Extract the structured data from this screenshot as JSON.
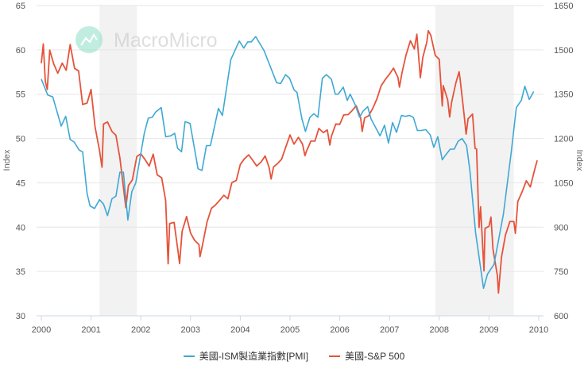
{
  "watermark": {
    "text": "MacroMicro"
  },
  "chart_data": {
    "type": "line",
    "xlabel": "",
    "x_ticks": [
      "2000",
      "2001",
      "2002",
      "2003",
      "2004",
      "2005",
      "2006",
      "2007",
      "2008",
      "2009",
      "2010"
    ],
    "xlim": [
      2000,
      2010
    ],
    "y_left": {
      "label": "Index",
      "lim": [
        30,
        65
      ],
      "ticks": [
        "30",
        "35",
        "40",
        "45",
        "50",
        "55",
        "60",
        "65"
      ]
    },
    "y_right": {
      "label": "Index",
      "lim": [
        600,
        1650
      ],
      "ticks": [
        "600",
        "750",
        "900",
        "1050",
        "1200",
        "1350",
        "1500",
        "1650"
      ]
    },
    "grid": true,
    "legend_position": "bottom",
    "shaded_periods": [
      [
        2001.17,
        2001.92
      ],
      [
        2007.92,
        2009.5
      ]
    ],
    "series": [
      {
        "name": "美國-ISM製造業指數[PMI]",
        "axis": "left",
        "color": "#3ea8d4",
        "points": [
          [
            2000.0,
            56.7
          ],
          [
            2000.13,
            54.9
          ],
          [
            2000.23,
            54.7
          ],
          [
            2000.4,
            51.4
          ],
          [
            2000.49,
            52.5
          ],
          [
            2000.58,
            49.9
          ],
          [
            2000.66,
            49.6
          ],
          [
            2000.76,
            48.7
          ],
          [
            2000.83,
            48.5
          ],
          [
            2000.92,
            43.8
          ],
          [
            2000.98,
            42.4
          ],
          [
            2001.07,
            42.1
          ],
          [
            2001.17,
            43.1
          ],
          [
            2001.25,
            42.6
          ],
          [
            2001.33,
            41.3
          ],
          [
            2001.42,
            43.2
          ],
          [
            2001.5,
            43.5
          ],
          [
            2001.58,
            46.2
          ],
          [
            2001.65,
            46.2
          ],
          [
            2001.74,
            40.8
          ],
          [
            2001.82,
            44.0
          ],
          [
            2001.9,
            45.0
          ],
          [
            2002.07,
            50.6
          ],
          [
            2002.15,
            52.3
          ],
          [
            2002.23,
            52.4
          ],
          [
            2002.3,
            53.0
          ],
          [
            2002.41,
            53.5
          ],
          [
            2002.5,
            50.2
          ],
          [
            2002.6,
            50.3
          ],
          [
            2002.68,
            50.6
          ],
          [
            2002.74,
            48.9
          ],
          [
            2002.82,
            48.5
          ],
          [
            2002.89,
            51.9
          ],
          [
            2002.99,
            51.7
          ],
          [
            2003.15,
            46.6
          ],
          [
            2003.23,
            46.4
          ],
          [
            2003.32,
            49.2
          ],
          [
            2003.4,
            49.2
          ],
          [
            2003.56,
            53.4
          ],
          [
            2003.64,
            52.6
          ],
          [
            2003.81,
            58.9
          ],
          [
            2003.98,
            61.0
          ],
          [
            2004.07,
            60.2
          ],
          [
            2004.15,
            60.9
          ],
          [
            2004.22,
            60.9
          ],
          [
            2004.31,
            61.5
          ],
          [
            2004.48,
            59.9
          ],
          [
            2004.73,
            56.3
          ],
          [
            2004.81,
            56.2
          ],
          [
            2004.91,
            57.2
          ],
          [
            2004.99,
            56.8
          ],
          [
            2005.08,
            55.5
          ],
          [
            2005.14,
            55.2
          ],
          [
            2005.24,
            52.2
          ],
          [
            2005.31,
            50.8
          ],
          [
            2005.4,
            52.4
          ],
          [
            2005.48,
            52.8
          ],
          [
            2005.56,
            52.4
          ],
          [
            2005.65,
            56.8
          ],
          [
            2005.73,
            57.2
          ],
          [
            2005.83,
            56.7
          ],
          [
            2005.91,
            55.0
          ],
          [
            2005.97,
            55.0
          ],
          [
            2006.07,
            55.8
          ],
          [
            2006.15,
            54.3
          ],
          [
            2006.21,
            55.0
          ],
          [
            2006.31,
            53.8
          ],
          [
            2006.4,
            52.4
          ],
          [
            2006.47,
            53.1
          ],
          [
            2006.56,
            53.6
          ],
          [
            2006.63,
            52.2
          ],
          [
            2006.81,
            50.3
          ],
          [
            2006.9,
            51.5
          ],
          [
            2006.98,
            49.5
          ],
          [
            2007.06,
            51.8
          ],
          [
            2007.14,
            50.7
          ],
          [
            2007.24,
            52.6
          ],
          [
            2007.32,
            52.5
          ],
          [
            2007.4,
            52.6
          ],
          [
            2007.48,
            52.4
          ],
          [
            2007.56,
            50.9
          ],
          [
            2007.64,
            50.9
          ],
          [
            2007.73,
            51.0
          ],
          [
            2007.82,
            50.4
          ],
          [
            2007.89,
            49.0
          ],
          [
            2007.97,
            50.2
          ],
          [
            2008.06,
            47.6
          ],
          [
            2008.11,
            48.0
          ],
          [
            2008.22,
            48.8
          ],
          [
            2008.3,
            48.8
          ],
          [
            2008.38,
            49.7
          ],
          [
            2008.46,
            50.0
          ],
          [
            2008.55,
            49.2
          ],
          [
            2008.62,
            46.2
          ],
          [
            2008.73,
            39.4
          ],
          [
            2008.89,
            33.1
          ],
          [
            2008.97,
            34.7
          ],
          [
            2009.1,
            35.8
          ],
          [
            2009.29,
            41.5
          ],
          [
            2009.45,
            48.6
          ],
          [
            2009.55,
            53.5
          ],
          [
            2009.65,
            54.3
          ],
          [
            2009.72,
            55.9
          ],
          [
            2009.81,
            54.4
          ],
          [
            2009.9,
            55.3
          ]
        ]
      },
      {
        "name": "美國-S&P 500",
        "axis": "right",
        "color": "#e5533a",
        "points": [
          [
            2000.0,
            1455
          ],
          [
            2000.04,
            1520
          ],
          [
            2000.08,
            1394
          ],
          [
            2000.12,
            1366
          ],
          [
            2000.17,
            1499
          ],
          [
            2000.25,
            1452
          ],
          [
            2000.33,
            1421
          ],
          [
            2000.42,
            1455
          ],
          [
            2000.5,
            1431
          ],
          [
            2000.58,
            1518
          ],
          [
            2000.67,
            1437
          ],
          [
            2000.75,
            1429
          ],
          [
            2000.83,
            1315
          ],
          [
            2000.92,
            1320
          ],
          [
            2001.0,
            1366
          ],
          [
            2001.08,
            1240
          ],
          [
            2001.17,
            1160
          ],
          [
            2001.22,
            1103
          ],
          [
            2001.25,
            1249
          ],
          [
            2001.33,
            1256
          ],
          [
            2001.42,
            1224
          ],
          [
            2001.5,
            1211
          ],
          [
            2001.58,
            1134
          ],
          [
            2001.7,
            966
          ],
          [
            2001.75,
            1041
          ],
          [
            2001.83,
            1060
          ],
          [
            2001.92,
            1139
          ],
          [
            2002.0,
            1148
          ],
          [
            2002.08,
            1130
          ],
          [
            2002.17,
            1107
          ],
          [
            2002.25,
            1147
          ],
          [
            2002.33,
            1077
          ],
          [
            2002.42,
            1067
          ],
          [
            2002.5,
            990
          ],
          [
            2002.55,
            776
          ],
          [
            2002.58,
            912
          ],
          [
            2002.67,
            916
          ],
          [
            2002.75,
            815
          ],
          [
            2002.78,
            777
          ],
          [
            2002.83,
            886
          ],
          [
            2002.92,
            936
          ],
          [
            2003.0,
            880
          ],
          [
            2003.08,
            856
          ],
          [
            2003.17,
            841
          ],
          [
            2003.19,
            800
          ],
          [
            2003.25,
            848
          ],
          [
            2003.33,
            917
          ],
          [
            2003.42,
            964
          ],
          [
            2003.5,
            975
          ],
          [
            2003.58,
            990
          ],
          [
            2003.67,
            1008
          ],
          [
            2003.75,
            996
          ],
          [
            2003.83,
            1051
          ],
          [
            2003.92,
            1058
          ],
          [
            2004.0,
            1112
          ],
          [
            2004.08,
            1131
          ],
          [
            2004.17,
            1145
          ],
          [
            2004.25,
            1126
          ],
          [
            2004.33,
            1107
          ],
          [
            2004.42,
            1121
          ],
          [
            2004.5,
            1141
          ],
          [
            2004.58,
            1102
          ],
          [
            2004.62,
            1063
          ],
          [
            2004.67,
            1104
          ],
          [
            2004.75,
            1115
          ],
          [
            2004.83,
            1130
          ],
          [
            2004.92,
            1174
          ],
          [
            2005.0,
            1212
          ],
          [
            2005.08,
            1181
          ],
          [
            2005.17,
            1204
          ],
          [
            2005.25,
            1181
          ],
          [
            2005.3,
            1142
          ],
          [
            2005.33,
            1157
          ],
          [
            2005.42,
            1192
          ],
          [
            2005.5,
            1191
          ],
          [
            2005.58,
            1234
          ],
          [
            2005.67,
            1220
          ],
          [
            2005.75,
            1229
          ],
          [
            2005.8,
            1178
          ],
          [
            2005.83,
            1207
          ],
          [
            2005.92,
            1249
          ],
          [
            2006.0,
            1248
          ],
          [
            2006.08,
            1280
          ],
          [
            2006.17,
            1281
          ],
          [
            2006.25,
            1295
          ],
          [
            2006.33,
            1311
          ],
          [
            2006.42,
            1270
          ],
          [
            2006.45,
            1224
          ],
          [
            2006.5,
            1270
          ],
          [
            2006.58,
            1277
          ],
          [
            2006.67,
            1304
          ],
          [
            2006.75,
            1336
          ],
          [
            2006.83,
            1378
          ],
          [
            2006.92,
            1401
          ],
          [
            2007.0,
            1418
          ],
          [
            2007.08,
            1438
          ],
          [
            2007.17,
            1407
          ],
          [
            2007.2,
            1374
          ],
          [
            2007.25,
            1421
          ],
          [
            2007.33,
            1482
          ],
          [
            2007.42,
            1531
          ],
          [
            2007.5,
            1503
          ],
          [
            2007.55,
            1553
          ],
          [
            2007.62,
            1406
          ],
          [
            2007.67,
            1474
          ],
          [
            2007.75,
            1527
          ],
          [
            2007.78,
            1565
          ],
          [
            2007.83,
            1549
          ],
          [
            2007.92,
            1481
          ],
          [
            2008.0,
            1468
          ],
          [
            2008.06,
            1310
          ],
          [
            2008.08,
            1379
          ],
          [
            2008.17,
            1331
          ],
          [
            2008.21,
            1273
          ],
          [
            2008.25,
            1323
          ],
          [
            2008.33,
            1386
          ],
          [
            2008.4,
            1426
          ],
          [
            2008.42,
            1400
          ],
          [
            2008.5,
            1280
          ],
          [
            2008.54,
            1215
          ],
          [
            2008.58,
            1267
          ],
          [
            2008.67,
            1283
          ],
          [
            2008.72,
            1166
          ],
          [
            2008.75,
            1165
          ],
          [
            2008.8,
            899
          ],
          [
            2008.83,
            969
          ],
          [
            2008.9,
            752
          ],
          [
            2008.92,
            896
          ],
          [
            2009.0,
            903
          ],
          [
            2009.04,
            934
          ],
          [
            2009.08,
            826
          ],
          [
            2009.17,
            735
          ],
          [
            2009.19,
            677
          ],
          [
            2009.25,
            798
          ],
          [
            2009.33,
            873
          ],
          [
            2009.42,
            919
          ],
          [
            2009.5,
            919
          ],
          [
            2009.53,
            879
          ],
          [
            2009.58,
            987
          ],
          [
            2009.67,
            1021
          ],
          [
            2009.75,
            1057
          ],
          [
            2009.83,
            1036
          ],
          [
            2009.92,
            1096
          ],
          [
            2009.97,
            1126
          ]
        ]
      }
    ]
  }
}
